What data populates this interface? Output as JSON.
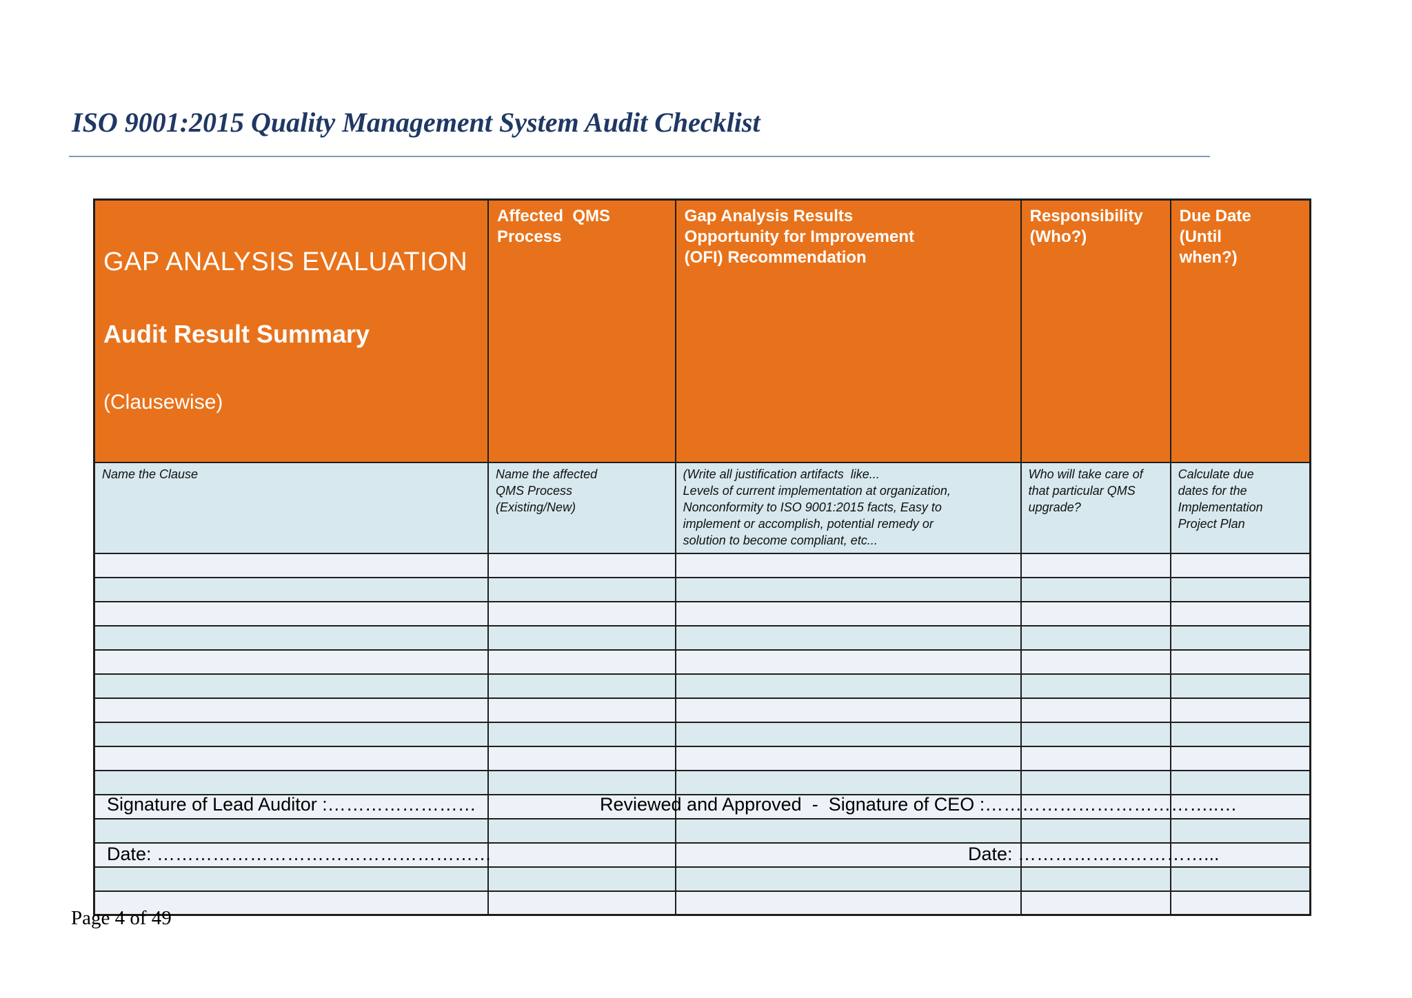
{
  "page": {
    "title": "ISO 9001:2015 Quality Management System Audit Checklist",
    "footer": "Page 4 of 49"
  },
  "colors": {
    "title_color": "#1F3864",
    "rule_color": "#7F9CB8",
    "header_bg": "#E8721B",
    "header_text": "#FFFFFF",
    "desc_row_bg": "#D7E8EE",
    "row_light": "#EDF2F8",
    "row_teal": "#DAEAEE",
    "border_color": "#1E1E1E"
  },
  "table": {
    "header": {
      "col1_line1": "GAP ANALYSIS EVALUATION",
      "col1_line2": "Audit Result Summary",
      "col1_line3": "(Clausewise)",
      "col2": "Affected  QMS\nProcess",
      "col3": "Gap Analysis Results\nOpportunity for Improvement\n(OFI) Recommendation",
      "col4": "Responsibility\n(Who?)",
      "col5": "Due Date\n(Until\nwhen?)"
    },
    "descriptions": {
      "col1": "Name the Clause",
      "col2": "Name the affected\nQMS Process\n(Existing/New)",
      "col3": "(Write all justification artifacts  like...\nLevels of current implementation at organization,\nNonconformity to ISO 9001:2015 facts, Easy to\nimplement or accomplish, potential remedy or\nsolution to become compliant, etc...",
      "col4": "Who will take care of\nthat particular QMS\nupgrade?",
      "col5": "Calculate due\ndates for the\nImplementation\nProject Plan"
    },
    "empty_row_count": 15
  },
  "signature": {
    "lead_auditor": "Signature of Lead Auditor :……………………",
    "ceo": "Reviewed and Approved  -  Signature of CEO :………………………………..…",
    "date_left": "Date: ………………………………………………",
    "date_right": "Date: …………………………..."
  }
}
